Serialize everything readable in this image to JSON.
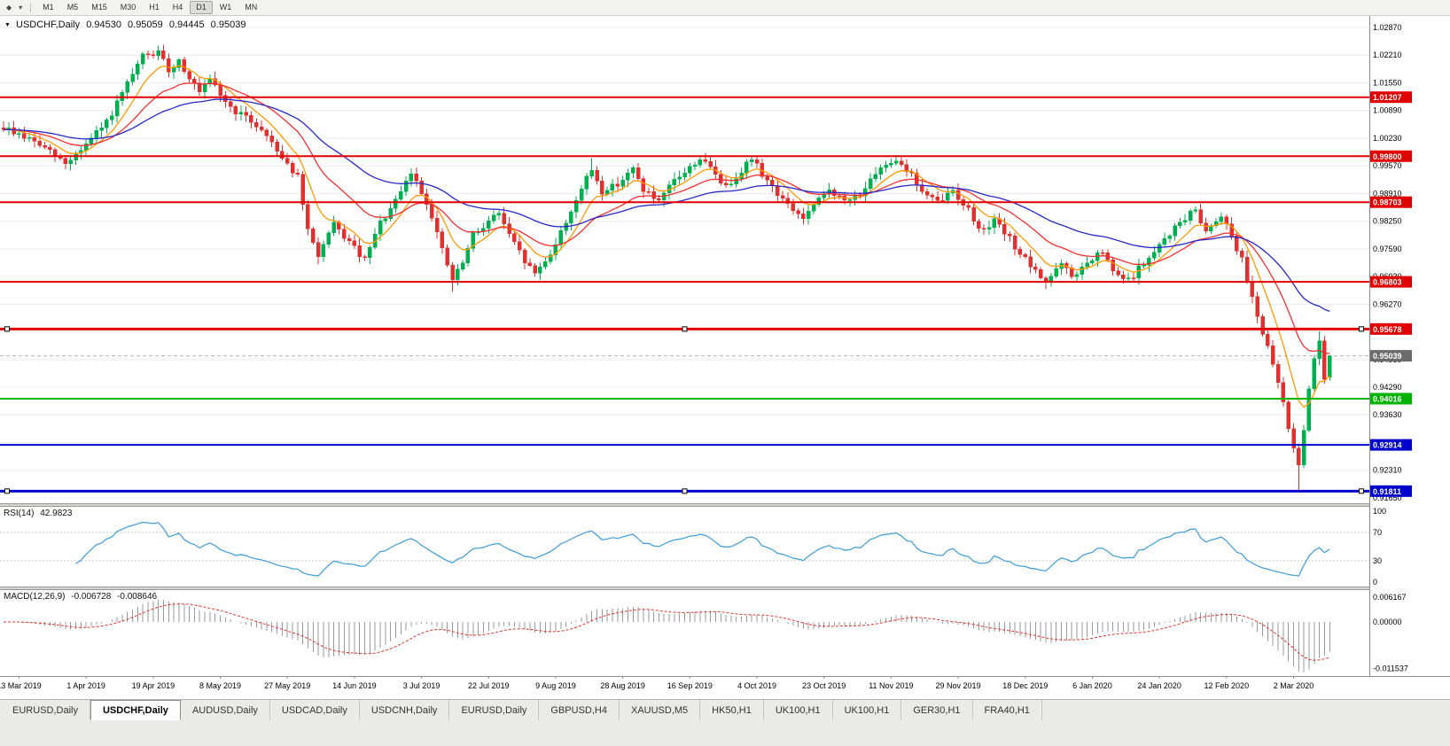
{
  "toolbar": {
    "timeframes": [
      "M1",
      "M5",
      "M15",
      "M30",
      "H1",
      "H4",
      "D1",
      "W1",
      "MN"
    ],
    "active": "D1"
  },
  "chart_header": {
    "symbol": "USDCHF,Daily",
    "open": "0.94530",
    "high": "0.95059",
    "low": "0.94445",
    "close": "0.95039"
  },
  "price_axis": {
    "labels": [
      "1.02870",
      "1.02210",
      "1.01550",
      "1.00890",
      "1.00230",
      "0.99570",
      "0.98910",
      "0.98250",
      "0.97590",
      "0.96930",
      "0.96270",
      "0.95610",
      "0.94950",
      "0.94290",
      "0.93630",
      "0.92970",
      "0.92310",
      "0.91650"
    ]
  },
  "chart_data": {
    "type": "candlestick",
    "symbol": "USDCHF",
    "timeframe": "Daily",
    "visible_range": {
      "price_top": 1.03166,
      "price_bottom": 0.91522
    },
    "candle_count": 258,
    "final_ohlc": [
      0.9453,
      0.95059,
      0.94445,
      0.95039
    ],
    "noise": 0.0016,
    "seed": 9,
    "price_waypoints": [
      [
        0,
        1.0048
      ],
      [
        6,
        1.0015
      ],
      [
        9,
        0.999
      ],
      [
        12,
        0.9962
      ],
      [
        16,
        1.0008
      ],
      [
        20,
        1.006
      ],
      [
        24,
        1.015
      ],
      [
        27,
        1.0218
      ],
      [
        30,
        1.0226
      ],
      [
        32,
        1.0185
      ],
      [
        34,
        1.0208
      ],
      [
        38,
        1.013
      ],
      [
        40,
        1.016
      ],
      [
        44,
        1.0095
      ],
      [
        49,
        1.0055
      ],
      [
        52,
        1.0015
      ],
      [
        54,
        0.9978
      ],
      [
        57,
        0.993
      ],
      [
        59,
        0.98
      ],
      [
        61,
        0.9745
      ],
      [
        64,
        0.9815
      ],
      [
        67,
        0.9775
      ],
      [
        70,
        0.973
      ],
      [
        73,
        0.982
      ],
      [
        76,
        0.987
      ],
      [
        79,
        0.994
      ],
      [
        81,
        0.9895
      ],
      [
        83,
        0.984
      ],
      [
        85,
        0.9755
      ],
      [
        87,
        0.9685
      ],
      [
        89,
        0.9725
      ],
      [
        91,
        0.979
      ],
      [
        93,
        0.9815
      ],
      [
        96,
        0.9845
      ],
      [
        98,
        0.979
      ],
      [
        101,
        0.973
      ],
      [
        103,
        0.97
      ],
      [
        106,
        0.9748
      ],
      [
        109,
        0.9822
      ],
      [
        111,
        0.9878
      ],
      [
        114,
        0.9948
      ],
      [
        116,
        0.9895
      ],
      [
        119,
        0.9915
      ],
      [
        122,
        0.9948
      ],
      [
        124,
        0.9902
      ],
      [
        127,
        0.9868
      ],
      [
        130,
        0.9922
      ],
      [
        133,
        0.9952
      ],
      [
        135,
        0.9975
      ],
      [
        138,
        0.9938
      ],
      [
        140,
        0.9905
      ],
      [
        143,
        0.9948
      ],
      [
        145,
        0.9975
      ],
      [
        147,
        0.9938
      ],
      [
        150,
        0.9892
      ],
      [
        152,
        0.9862
      ],
      [
        155,
        0.9832
      ],
      [
        157,
        0.986
      ],
      [
        160,
        0.9902
      ],
      [
        163,
        0.987
      ],
      [
        166,
        0.9892
      ],
      [
        169,
        0.9932
      ],
      [
        171,
        0.9962
      ],
      [
        173,
        0.9975
      ],
      [
        176,
        0.9935
      ],
      [
        178,
        0.9895
      ],
      [
        181,
        0.9868
      ],
      [
        184,
        0.9898
      ],
      [
        187,
        0.9852
      ],
      [
        189,
        0.9805
      ],
      [
        192,
        0.9825
      ],
      [
        195,
        0.9782
      ],
      [
        197,
        0.9748
      ],
      [
        200,
        0.9702
      ],
      [
        202,
        0.9682
      ],
      [
        205,
        0.9722
      ],
      [
        207,
        0.9692
      ],
      [
        210,
        0.9722
      ],
      [
        213,
        0.9752
      ],
      [
        215,
        0.9702
      ],
      [
        218,
        0.9682
      ],
      [
        220,
        0.9712
      ],
      [
        223,
        0.9748
      ],
      [
        225,
        0.9782
      ],
      [
        228,
        0.9822
      ],
      [
        231,
        0.9852
      ],
      [
        233,
        0.9802
      ],
      [
        236,
        0.9842
      ],
      [
        238,
        0.9792
      ],
      [
        240,
        0.9732
      ],
      [
        242,
        0.9645
      ],
      [
        244,
        0.956
      ],
      [
        246,
        0.948
      ],
      [
        248,
        0.9395
      ],
      [
        249,
        0.933
      ],
      [
        250,
        0.929
      ],
      [
        251,
        0.9245
      ],
      [
        252,
        0.932
      ],
      [
        253,
        0.942
      ],
      [
        254,
        0.95
      ],
      [
        255,
        0.9545
      ],
      [
        256,
        0.9453
      ],
      [
        257,
        0.95039
      ]
    ],
    "wick_lows": {
      "61": 0.9722,
      "87": 0.9656,
      "251": 0.9182
    },
    "wick_highs": {
      "30": 1.0231,
      "114": 0.9975,
      "255": 0.9562
    },
    "moving_averages": [
      {
        "period": 8,
        "color": "#ff9900"
      },
      {
        "period": 20,
        "color": "#f23030"
      },
      {
        "period": 45,
        "color": "#2828c8"
      }
    ],
    "hlines": [
      {
        "value": 1.01207,
        "label": "1.01207",
        "color": "#e00000",
        "width": 2,
        "selected": false
      },
      {
        "value": 0.998,
        "label": "0.99800",
        "color": "#e00000",
        "width": 2,
        "selected": false
      },
      {
        "value": 0.98703,
        "label": "0.98703",
        "color": "#e00000",
        "width": 2,
        "selected": false
      },
      {
        "value": 0.96803,
        "label": "0.96803",
        "color": "#e00000",
        "width": 2,
        "selected": false
      },
      {
        "value": 0.95678,
        "label": "0.95678",
        "color": "#e00000",
        "width": 3,
        "selected": true
      },
      {
        "value": 0.94016,
        "label": "0.94016",
        "color": "#00b300",
        "width": 2,
        "selected": false
      },
      {
        "value": 0.92914,
        "label": "0.92914",
        "color": "#0000cc",
        "width": 2,
        "selected": false
      },
      {
        "value": 0.91811,
        "label": "0.91811",
        "color": "#0000cc",
        "width": 3,
        "selected": true
      }
    ],
    "last_price": {
      "label": "0.95039",
      "value": 0.95039,
      "color": "#6b6b6b"
    },
    "date_labels": [
      "13 Mar 2019",
      "1 Apr 2019",
      "19 Apr 2019",
      "8 May 2019",
      "27 May 2019",
      "14 Jun 2019",
      "3 Jul 2019",
      "22 Jul 2019",
      "9 Aug 2019",
      "28 Aug 2019",
      "16 Sep 2019",
      "4 Oct 2019",
      "23 Oct 2019",
      "11 Nov 2019",
      "29 Nov 2019",
      "18 Dec 2019",
      "6 Jan 2020",
      "24 Jan 2020",
      "12 Feb 2020",
      "2 Mar 2020"
    ],
    "colors": {
      "bull": "#00b050",
      "bear": "#e03131",
      "grid": "#ececec"
    }
  },
  "rsi": {
    "label": "RSI(14)",
    "current": "42.9823",
    "period": 14,
    "axis_labels": [
      "100",
      "70",
      "30",
      "0"
    ],
    "level_lines": [
      70,
      30
    ],
    "color": "#3d9bd8"
  },
  "macd": {
    "label": "MACD(12,26,9)",
    "main_value": "-0.006728",
    "signal_value": "-0.008646",
    "fast": 12,
    "slow": 26,
    "signal": 9,
    "axis_labels": [
      "0.006167",
      "0.00000",
      "-0.011537"
    ],
    "histogram_color": "#9a9a9a",
    "signal_color": "#e03131"
  },
  "tabs": {
    "active_index": 1,
    "items": [
      "EURUSD,Daily",
      "USDCHF,Daily",
      "AUDUSD,Daily",
      "USDCAD,Daily",
      "USDCNH,Daily",
      "EURUSD,Daily",
      "GBPUSD,H4",
      "XAUUSD,M5",
      "HK50,H1",
      "UK100,H1",
      "UK100,H1",
      "GER30,H1",
      "FRA40,H1"
    ]
  }
}
